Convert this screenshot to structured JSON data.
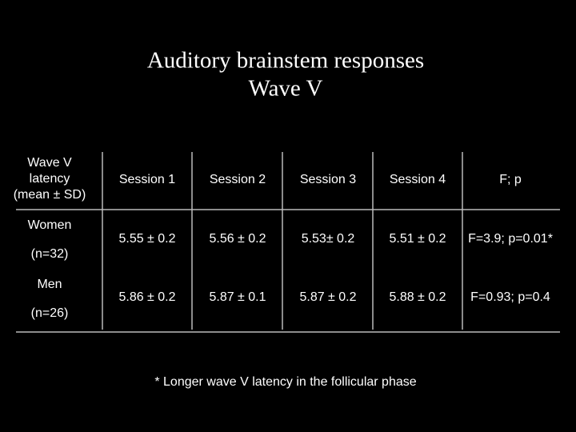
{
  "header": {
    "title": "Auditory brainstem responses",
    "subtitle": "Wave V"
  },
  "table": {
    "row_header": [
      "Wave V",
      "latency",
      "(mean ± SD)"
    ],
    "columns": [
      "Session 1",
      "Session 2",
      "Session 3",
      "Session 4",
      "F; p"
    ],
    "rows": [
      {
        "label": "Women",
        "n": "(n=32)",
        "cells": [
          "5.55 ± 0.2",
          "5.56 ± 0.2",
          "5.53± 0.2",
          "5.51 ± 0.2",
          "F=3.9; p=0.01*"
        ]
      },
      {
        "label": "Men",
        "n": "(n=26)",
        "cells": [
          "5.86 ± 0.2",
          "5.87 ± 0.1",
          "5.87 ± 0.2",
          "5.88 ± 0.2",
          "F=0.93; p=0.4"
        ]
      }
    ]
  },
  "footnote": "* Longer wave V latency in the follicular phase"
}
